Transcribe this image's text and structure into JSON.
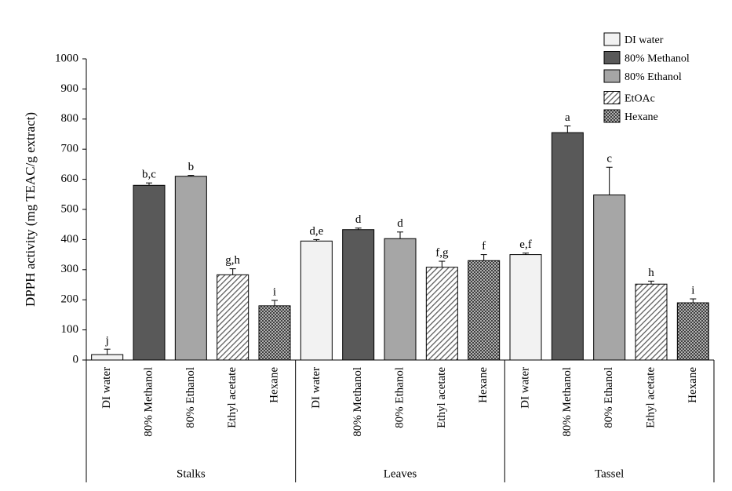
{
  "chart_data": {
    "type": "bar",
    "y_label": "DPPH activity (mg TEAC/g extract)",
    "groups": [
      "Stalks",
      "Leaves",
      "Tassel"
    ],
    "ylim": [
      0,
      1000
    ],
    "yticks": [
      0,
      100,
      200,
      300,
      400,
      500,
      600,
      700,
      800,
      900,
      1000
    ],
    "series": [
      {
        "name": "DI water",
        "tick_label": "DI water",
        "color": "#f2f2f2",
        "pattern": "solid",
        "values": [
          18,
          395,
          350
        ],
        "errors": [
          18,
          5,
          5
        ],
        "annotations": [
          "j",
          "d,e",
          "e,f"
        ]
      },
      {
        "name": "80% Methanol",
        "tick_label": "80% Methanol",
        "color": "#595959",
        "pattern": "solid",
        "values": [
          580,
          433,
          755
        ],
        "errors": [
          8,
          5,
          22
        ],
        "annotations": [
          "b,c",
          "d",
          "a"
        ]
      },
      {
        "name": "80% Ethanol",
        "tick_label": "80% Ethanol",
        "color": "#a6a6a6",
        "pattern": "solid",
        "values": [
          610,
          403,
          548
        ],
        "errors": [
          3,
          22,
          92
        ],
        "annotations": [
          "b",
          "d",
          "c"
        ]
      },
      {
        "name": "EtOAc",
        "tick_label": "Ethyl acetate",
        "color": "#595959",
        "pattern": "hatch",
        "values": [
          283,
          308,
          252
        ],
        "errors": [
          20,
          20,
          10
        ],
        "annotations": [
          "g,h",
          "f,g",
          "h"
        ]
      },
      {
        "name": "Hexane",
        "tick_label": "Hexane",
        "color": "#404040",
        "pattern": "dots",
        "values": [
          180,
          330,
          190
        ],
        "errors": [
          18,
          20,
          13
        ],
        "annotations": [
          "i",
          "f",
          "i"
        ]
      }
    ]
  }
}
